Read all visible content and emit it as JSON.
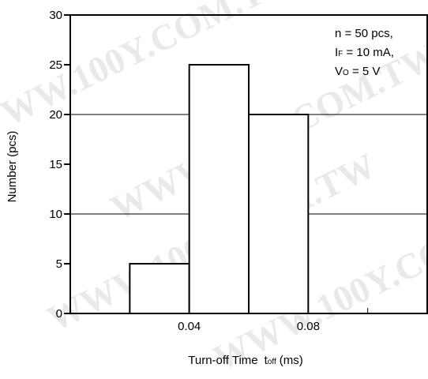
{
  "chart_data": {
    "type": "histogram",
    "xlabel_main": "Turn-off Time",
    "xlabel_symbol": "t",
    "xlabel_symbol_sub": "off",
    "xlabel_unit": "(ms)",
    "ylabel": "Number (pcs)",
    "xlim": [
      0,
      0.12
    ],
    "ylim": [
      0,
      30
    ],
    "x_ticks": [
      0.02,
      0.04,
      0.06,
      0.08,
      0.1
    ],
    "x_tick_labels": [
      {
        "value": 0.04,
        "label": "0.04"
      },
      {
        "value": 0.08,
        "label": "0.08"
      }
    ],
    "y_ticks": [
      0,
      5,
      10,
      15,
      20,
      25,
      30
    ],
    "y_tick_labels": [
      "0",
      "5",
      "10",
      "15",
      "20",
      "25",
      "30"
    ],
    "gridlines_y": [
      10,
      20
    ],
    "bins": [
      {
        "x0": 0.02,
        "x1": 0.04,
        "count": 5
      },
      {
        "x0": 0.04,
        "x1": 0.06,
        "count": 25
      },
      {
        "x0": 0.06,
        "x1": 0.08,
        "count": 20
      }
    ],
    "annotation": {
      "line1": "n = 50 pcs,",
      "line2_main": "I",
      "line2_sub": "F",
      "line2_rest": " = 10 mA,",
      "line3_main": "V",
      "line3_sub": "O",
      "line3_rest": " = 5 V"
    }
  },
  "watermark_text": "WWW.100Y.COM.TW"
}
